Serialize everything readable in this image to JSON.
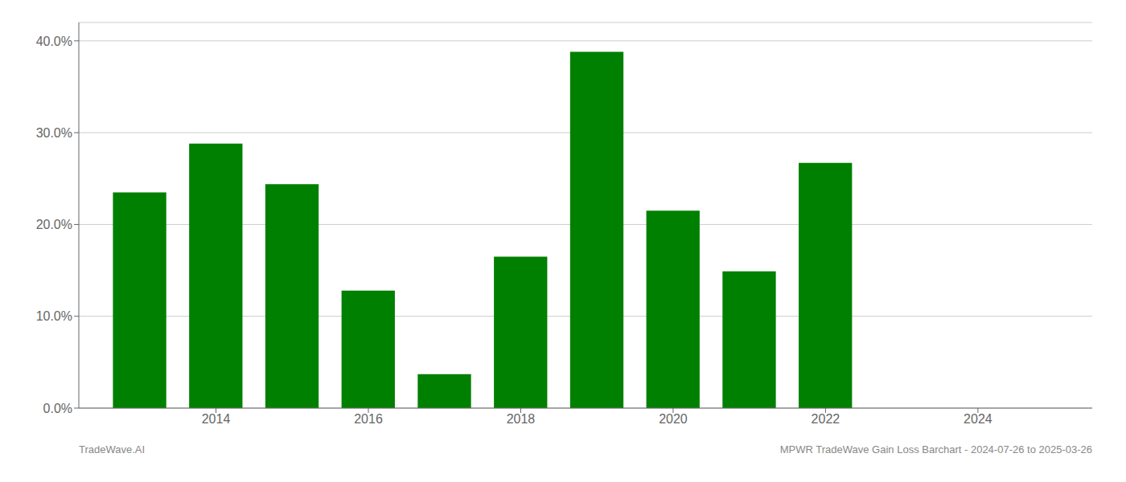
{
  "chart_data": {
    "type": "bar",
    "x": [
      2013,
      2014,
      2015,
      2016,
      2017,
      2018,
      2019,
      2020,
      2021,
      2022,
      2023
    ],
    "values": [
      0.235,
      0.288,
      0.244,
      0.128,
      0.037,
      0.165,
      0.388,
      0.215,
      0.149,
      0.267,
      0.0
    ],
    "color": "#008000",
    "xlim": [
      2012.2,
      2025.5
    ],
    "xticks": [
      2014,
      2016,
      2018,
      2020,
      2022,
      2024
    ],
    "ylim": [
      0,
      0.42
    ],
    "yticks": [
      {
        "value": 0.0,
        "label": "0.0%"
      },
      {
        "value": 0.1,
        "label": "10.0%"
      },
      {
        "value": 0.2,
        "label": "20.0%"
      },
      {
        "value": 0.3,
        "label": "30.0%"
      },
      {
        "value": 0.4,
        "label": "40.0%"
      }
    ],
    "grid": true,
    "annotations": [
      "TradeWave.AI",
      "MPWR TradeWave Gain Loss Barchart - 2024-07-26 to 2025-03-26"
    ]
  }
}
